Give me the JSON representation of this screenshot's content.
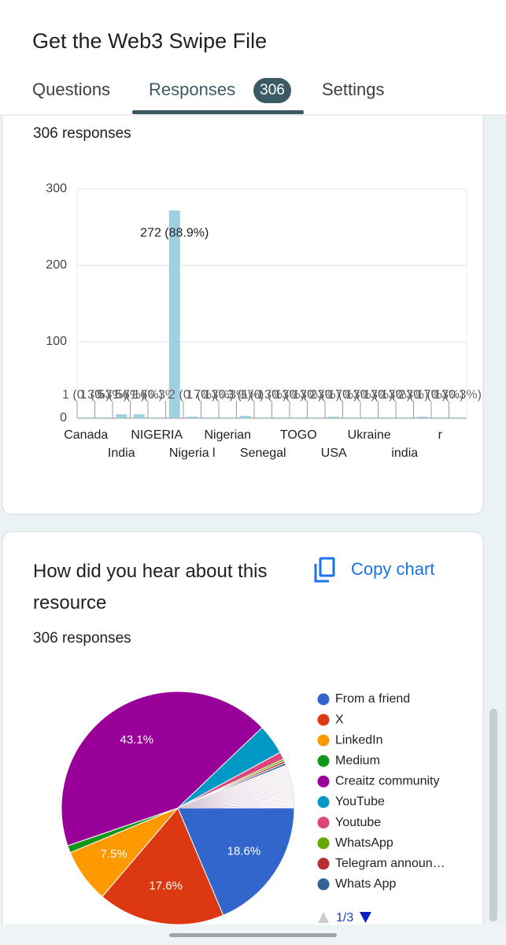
{
  "header": {
    "title": "Get the Web3 Swipe File",
    "tabs": [
      "Questions",
      "Responses",
      "Settings"
    ],
    "badge": "306"
  },
  "chart_data": [
    {
      "type": "bar",
      "subtitle": "306 responses",
      "categories": [
        "Canada",
        null,
        "India",
        null,
        "NIGERIA",
        null,
        "Nigeria l",
        null,
        "Nigerian",
        null,
        "Senegal",
        null,
        "TOGO",
        null,
        "USA",
        null,
        "Ukraine",
        null,
        "india",
        null,
        "r",
        null
      ],
      "values": [
        1,
        1,
        5,
        5,
        1,
        272,
        2,
        1,
        1,
        3,
        1,
        1,
        1,
        1,
        2,
        1,
        1,
        1,
        1,
        2,
        1,
        1
      ],
      "value_labels": [
        "1 (0.3%)",
        "1 (0.3%)",
        "5 (1.6%)",
        "5 (1.6%)",
        "1 (0.3%)",
        "272 (88.9%)",
        "2 (0.7%)",
        "1 (0.3%)",
        "1 (0.3%)",
        "3 (1%)",
        "1 (0.3%)",
        "1 (0.3%)",
        "1 (0.3%)",
        "1 (0.3%)",
        "2 (0.7%)",
        "1 (0.3%)",
        "1 (0.3%)",
        "1 (0.3%)",
        "1 (0.3%)",
        "2 (0.7%)",
        "1 (0.3%)",
        "1 (0.3%)"
      ],
      "color": "#9fd0df",
      "ylim": [
        0,
        300
      ],
      "yticks": [
        0,
        100,
        200,
        300
      ],
      "grid": true
    },
    {
      "type": "pie",
      "title": "How did you hear about this resource",
      "subtitle": "306 responses",
      "button": "Copy chart",
      "legend_page": "1/3",
      "categories": [
        "From a friend",
        "X",
        "LinkedIn",
        "Medium",
        "Creaitz community",
        "YouTube",
        "Youtube",
        "WhatsApp",
        "Telegram announ…",
        "Whats App",
        null,
        null,
        null,
        null,
        null,
        null,
        null,
        null,
        null,
        null,
        null,
        null,
        null,
        null,
        null,
        null,
        null,
        null,
        null,
        null
      ],
      "values": [
        18.6,
        17.6,
        7.5,
        1,
        43.1,
        4.2,
        1,
        0.3,
        0.3,
        0.3,
        0.3,
        0.3,
        0.3,
        0.3,
        0.3,
        0.3,
        0.3,
        0.3,
        0.3,
        0.3,
        0.3,
        0.3,
        0.3,
        0.3,
        0.3,
        0.3,
        0.3,
        0.3,
        0.3,
        0.3
      ],
      "value_labels": [
        "18.6%",
        "17.6%",
        "7.5%",
        null,
        "43.1%",
        null,
        null,
        null,
        null,
        null,
        null,
        null,
        null,
        null,
        null,
        null,
        null,
        null,
        null,
        null,
        null,
        null,
        null,
        null,
        null,
        null,
        null,
        null,
        null,
        null
      ],
      "colors": [
        "#3366cc",
        "#dc3912",
        "#ff9900",
        "#109618",
        "#990099",
        "#0099c6",
        "#dd4477",
        "#66aa00",
        "#b82e2e",
        "#316395"
      ]
    }
  ]
}
